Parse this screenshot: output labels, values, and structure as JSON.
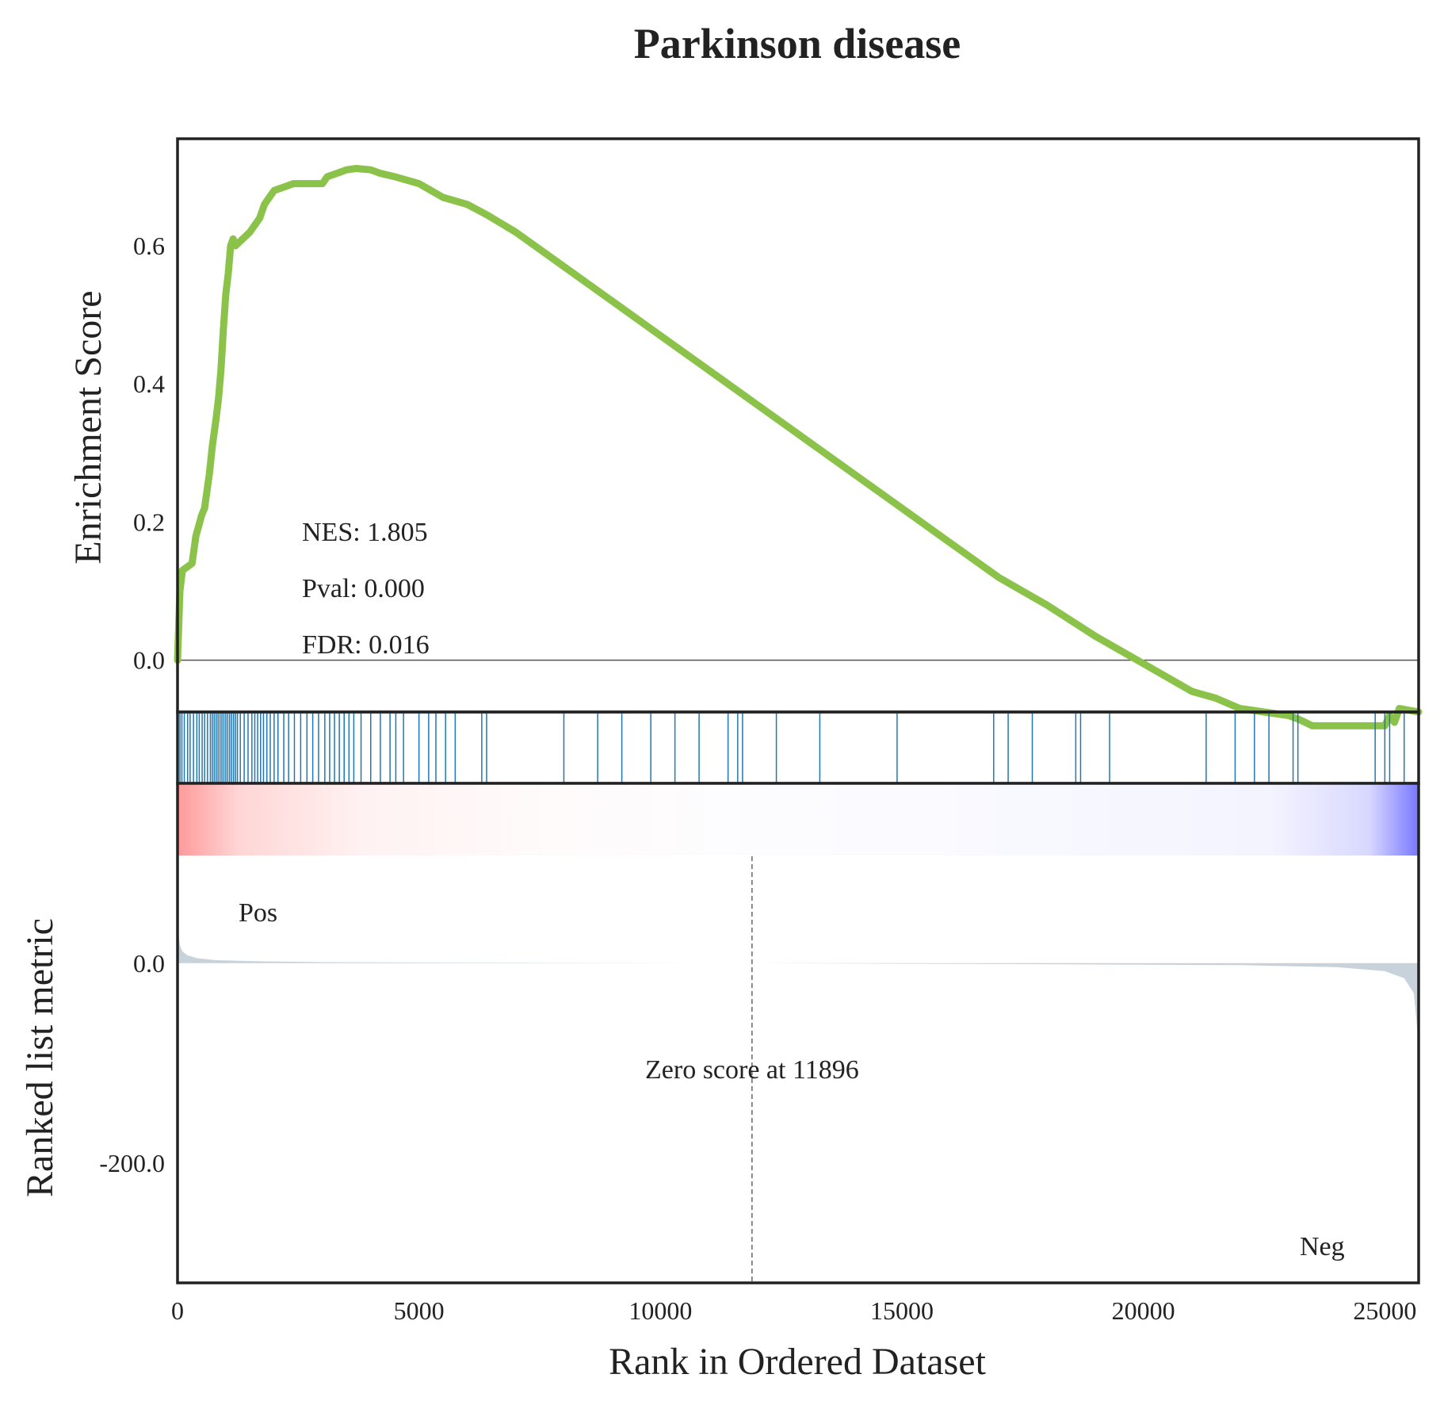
{
  "chart_data": {
    "type": "line",
    "title": "Parkinson disease",
    "xlabel": "Rank in Ordered Dataset",
    "xlim": [
      0,
      25700
    ],
    "xticks": [
      0,
      5000,
      10000,
      15000,
      20000,
      25000
    ],
    "es_panel": {
      "ylabel": "Enrichment Score",
      "ylim": [
        -0.075,
        0.755
      ],
      "yticks": [
        "0.0",
        "0.2",
        "0.4",
        "0.6"
      ],
      "ytick_values": [
        0.0,
        0.2,
        0.4,
        0.6
      ],
      "line_color": "#8bc34a",
      "series": [
        {
          "x": [
            0,
            50,
            100,
            300,
            380,
            500,
            560,
            660,
            720,
            800,
            850,
            900,
            950,
            1000,
            1050,
            1100,
            1150,
            1200,
            1500,
            1700,
            1800,
            1900,
            2000,
            2200,
            2400,
            2600,
            3000,
            3100,
            3300,
            3500,
            3700,
            4000,
            4200,
            4500,
            5000,
            5500,
            6000,
            6400,
            7000,
            8000,
            9000,
            10000,
            11000,
            12000,
            13000,
            14000,
            15000,
            16000,
            17000,
            18000,
            19000,
            20000,
            21000,
            21500,
            22000,
            22500,
            23000,
            23200,
            23500,
            24000,
            24500,
            24700,
            24800,
            24900,
            25000,
            25100,
            25200,
            25300,
            25700
          ],
          "y": [
            0.0,
            0.1,
            0.13,
            0.14,
            0.18,
            0.21,
            0.22,
            0.27,
            0.31,
            0.35,
            0.38,
            0.42,
            0.48,
            0.53,
            0.56,
            0.6,
            0.61,
            0.6,
            0.62,
            0.64,
            0.66,
            0.67,
            0.68,
            0.685,
            0.69,
            0.69,
            0.69,
            0.7,
            0.705,
            0.71,
            0.712,
            0.71,
            0.705,
            0.7,
            0.69,
            0.67,
            0.66,
            0.645,
            0.62,
            0.57,
            0.52,
            0.47,
            0.42,
            0.37,
            0.32,
            0.27,
            0.22,
            0.17,
            0.12,
            0.08,
            0.035,
            -0.005,
            -0.045,
            -0.055,
            -0.07,
            -0.075,
            -0.08,
            -0.085,
            -0.095,
            -0.11,
            -0.125,
            -0.13,
            -0.125,
            -0.115,
            -0.1,
            -0.08,
            -0.09,
            -0.07,
            -0.075
          ]
        }
      ],
      "annotations": [
        "NES: 1.805",
        "Pval: 0.000",
        "FDR: 0.016"
      ]
    },
    "hits_panel": {
      "color": "#1f77b4",
      "positions": [
        10,
        50,
        90,
        140,
        210,
        260,
        330,
        400,
        450,
        510,
        560,
        620,
        680,
        720,
        760,
        800,
        840,
        880,
        920,
        960,
        1000,
        1040,
        1080,
        1120,
        1160,
        1200,
        1240,
        1300,
        1380,
        1460,
        1540,
        1600,
        1660,
        1720,
        1780,
        1850,
        1920,
        2000,
        2080,
        2200,
        2300,
        2420,
        2550,
        2680,
        2800,
        2920,
        3050,
        3150,
        3250,
        3350,
        3450,
        3550,
        3650,
        3800,
        4000,
        4200,
        4400,
        4520,
        4680,
        5000,
        5200,
        5350,
        5550,
        5750,
        6300,
        6400,
        8000,
        8700,
        9200,
        9800,
        10300,
        10800,
        11400,
        11600,
        11700,
        12400,
        13300,
        14900,
        16900,
        17200,
        17700,
        18600,
        18700,
        19300,
        21300,
        21900,
        22300,
        22600,
        23100,
        23200,
        24800,
        25000,
        25100,
        25400
      ]
    },
    "metric_panel": {
      "ylabel": "Ranked list metric",
      "ylim": [
        -320,
        180
      ],
      "yticks": [
        "0.0",
        "-200.0"
      ],
      "ytick_values": [
        0,
        -200
      ],
      "fill_color": "#c8d2da",
      "curve": {
        "x": [
          0,
          20,
          50,
          100,
          200,
          400,
          800,
          1500,
          3000,
          6000,
          11896,
          18000,
          22000,
          24000,
          25000,
          25400,
          25600,
          25650,
          25700
        ],
        "y": [
          40,
          30,
          18,
          12,
          8,
          5,
          3,
          2,
          1,
          0.5,
          0,
          -1,
          -2,
          -4,
          -8,
          -15,
          -30,
          -55,
          -85
        ]
      },
      "zero_cross": 11896,
      "zero_label": "Zero score at 11896",
      "pos_label": "Pos",
      "neg_label": "Neg",
      "pos_color": "#ff0000",
      "neg_color": "#0000ff"
    }
  }
}
